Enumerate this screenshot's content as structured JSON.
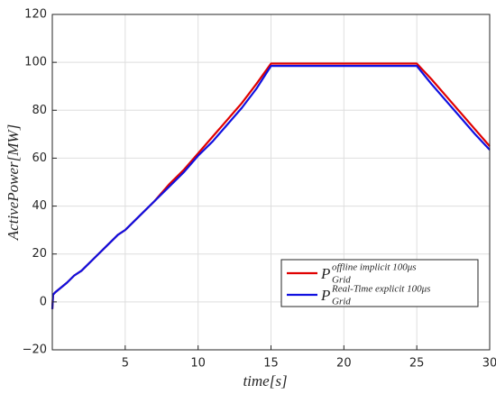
{
  "chart_data": {
    "type": "line",
    "xlabel": "time[s]",
    "ylabel": "ActivePower[MW]",
    "x": [
      0,
      0.05,
      0.2,
      1,
      1.5,
      2,
      3,
      4,
      4.5,
      5,
      6,
      7,
      8,
      9,
      10,
      11,
      12,
      13,
      14,
      15,
      20,
      25,
      26,
      27,
      28,
      29,
      30
    ],
    "series": [
      {
        "name": "P",
        "subscript": "Grid",
        "superscript": "offline implicit 100μs",
        "color": "#e00000",
        "values": [
          -3,
          3,
          4,
          8,
          11,
          13,
          19,
          25,
          28,
          30,
          36,
          42,
          49,
          55,
          62,
          69,
          76,
          83,
          91,
          99.5,
          99.5,
          99.5,
          93,
          86,
          79,
          72,
          65
        ]
      },
      {
        "name": "P",
        "subscript": "Grid",
        "superscript": "Real-Time explicit 100μs",
        "color": "#1010e0",
        "values": [
          -3,
          3,
          4,
          8,
          11,
          13,
          19,
          25,
          28,
          30,
          36,
          42,
          48,
          54,
          61,
          67,
          74,
          81,
          89,
          98.5,
          98.5,
          98.5,
          91,
          84,
          77,
          70,
          63.5
        ]
      }
    ],
    "xlim": [
      0,
      30
    ],
    "xticks": [
      5,
      10,
      15,
      20,
      25,
      30
    ],
    "ylim": [
      -20,
      120
    ],
    "yticks": [
      {
        "value": -20,
        "label": "−20"
      },
      0,
      20,
      40,
      60,
      80,
      100,
      120
    ],
    "grid": true,
    "legend": "lower right"
  }
}
